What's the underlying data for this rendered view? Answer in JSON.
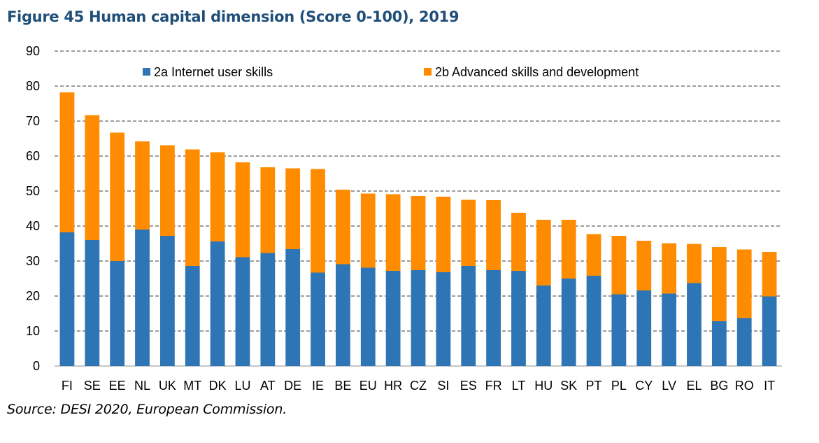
{
  "title": "Figure 45 Human capital dimension (Score 0-100), 2019",
  "source": "Source: DESI 2020, European Commission.",
  "colors": {
    "series_a": "#2e75b6",
    "series_b": "#ff8c00",
    "grid": "#7f7f7f"
  },
  "chart_data": {
    "type": "bar",
    "stacked": true,
    "title": "Figure 45 Human capital dimension (Score 0-100), 2019",
    "xlabel": "",
    "ylabel": "",
    "ylim": [
      0,
      90
    ],
    "yticks": [
      0,
      10,
      20,
      30,
      40,
      50,
      60,
      70,
      80,
      90
    ],
    "grid": true,
    "legend": "top",
    "categories": [
      "FI",
      "SE",
      "EE",
      "NL",
      "UK",
      "MT",
      "DK",
      "LU",
      "AT",
      "DE",
      "IE",
      "BE",
      "EU",
      "HR",
      "CZ",
      "SI",
      "ES",
      "FR",
      "LT",
      "HU",
      "SK",
      "PT",
      "PL",
      "CY",
      "LV",
      "EL",
      "BG",
      "RO",
      "IT"
    ],
    "series": [
      {
        "name": "2a Internet user skills",
        "values": [
          38.2,
          36.0,
          30.0,
          39.0,
          37.2,
          28.6,
          35.6,
          31.1,
          32.3,
          33.4,
          26.7,
          29.1,
          28.1,
          27.2,
          27.4,
          26.8,
          28.6,
          27.4,
          27.2,
          23.0,
          25.0,
          25.8,
          20.5,
          21.6,
          20.7,
          23.7,
          12.8,
          13.7,
          19.9
        ]
      },
      {
        "name": "2b Advanced skills and development",
        "values": [
          40.0,
          35.7,
          36.7,
          25.2,
          25.9,
          33.3,
          25.5,
          27.1,
          24.5,
          23.1,
          29.6,
          21.3,
          21.2,
          21.9,
          21.2,
          21.6,
          18.9,
          20.0,
          16.6,
          18.8,
          16.8,
          11.9,
          16.7,
          14.2,
          14.4,
          11.2,
          21.2,
          19.6,
          12.7
        ]
      }
    ]
  }
}
